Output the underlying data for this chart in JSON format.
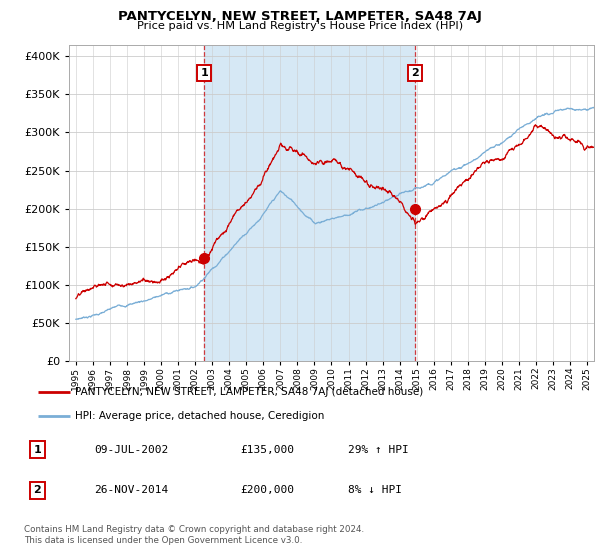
{
  "title": "PANTYCELYN, NEW STREET, LAMPETER, SA48 7AJ",
  "subtitle": "Price paid vs. HM Land Registry's House Price Index (HPI)",
  "yticks": [
    0,
    50000,
    100000,
    150000,
    200000,
    250000,
    300000,
    350000,
    400000
  ],
  "ylim": [
    0,
    415000
  ],
  "xlim_left": 1994.6,
  "xlim_right": 2025.4,
  "sale1_date": "09-JUL-2002",
  "sale1_price": 135000,
  "sale1_pct": "29% ↑ HPI",
  "sale2_date": "26-NOV-2014",
  "sale2_price": 200000,
  "sale2_pct": "8% ↓ HPI",
  "legend_label_red": "PANTYCELYN, NEW STREET, LAMPETER, SA48 7AJ (detached house)",
  "legend_label_blue": "HPI: Average price, detached house, Ceredigion",
  "footer": "Contains HM Land Registry data © Crown copyright and database right 2024.\nThis data is licensed under the Open Government Licence v3.0.",
  "red_color": "#cc0000",
  "blue_color": "#7aaed6",
  "shade_color": "#d6e8f5",
  "vline1_x": 2002.53,
  "vline2_x": 2014.9,
  "sale1_marker_x": 2002.53,
  "sale1_marker_y": 135000,
  "sale2_marker_x": 2014.9,
  "sale2_marker_y": 200000,
  "background_color": "#ffffff",
  "grid_color": "#cccccc"
}
